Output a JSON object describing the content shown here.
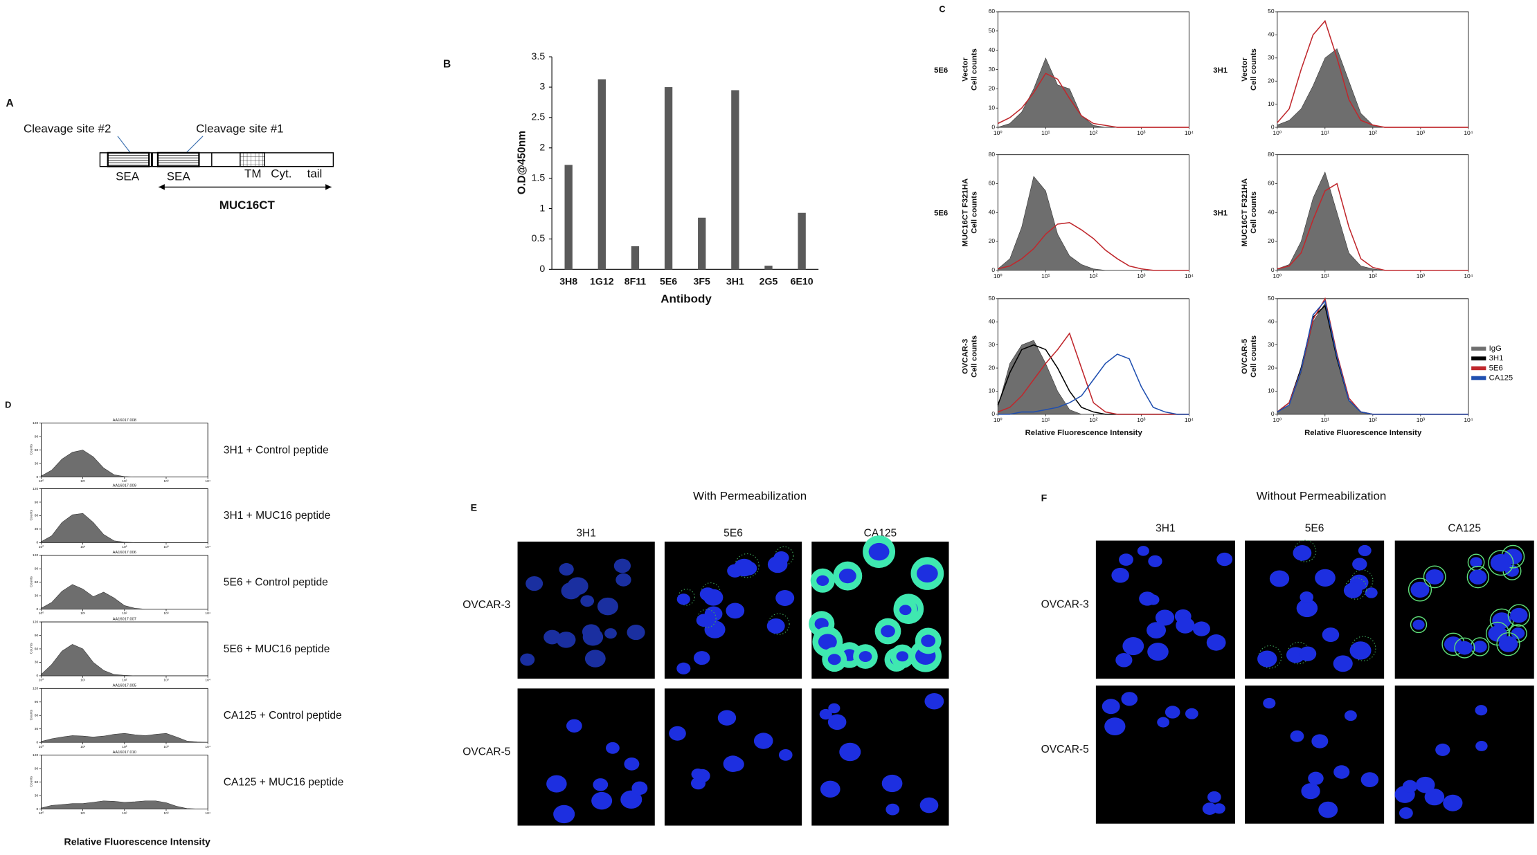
{
  "panel_a": {
    "label": "A",
    "cleavage_site_2": "Cleavage site #2",
    "cleavage_site_1": "Cleavage site #1",
    "domains": [
      "SEA",
      "SEA",
      "TM",
      "Cyt.",
      "tail"
    ],
    "construct": "MUC16CT"
  },
  "chart_data": {
    "type": "bar",
    "label": "B",
    "ylabel": "O.D@450nm",
    "xlabel": "Antibody",
    "categories": [
      "3H8",
      "1G12",
      "8F11",
      "5E6",
      "3F5",
      "3H1",
      "2G5",
      "6E10"
    ],
    "values": [
      1.72,
      3.13,
      0.38,
      3.0,
      0.85,
      2.95,
      0.06,
      0.93
    ],
    "color": "#5a5a5a",
    "ylim": [
      0,
      3.5
    ],
    "yticks": [
      0,
      0.5,
      1,
      1.5,
      2,
      2.5,
      3,
      3.5
    ],
    "grid": false
  },
  "panel_c": {
    "label": "C",
    "ylabel": "Cell counts",
    "xlabel": "Relative Fluorescence Intensity",
    "xscale": "log",
    "x": [
      1,
      1.78,
      3.16,
      5.62,
      10,
      17.8,
      31.6,
      56.2,
      100,
      178,
      316,
      562,
      1000,
      1780,
      3160,
      5620,
      10000
    ],
    "xlim": [
      1,
      10000
    ],
    "xticks": [
      {
        "value": 1,
        "label": "10⁰"
      },
      {
        "value": 10,
        "label": "10¹"
      },
      {
        "value": 100,
        "label": "10²"
      },
      {
        "value": 1000,
        "label": "10³"
      },
      {
        "value": 10000,
        "label": "10⁴"
      }
    ],
    "legend": [
      {
        "name": "IgG",
        "color": "#6e6e6e"
      },
      {
        "name": "3H1",
        "color": "#000000"
      },
      {
        "name": "5E6",
        "color": "#c0282d"
      },
      {
        "name": "CA125",
        "color": "#1f4fb0"
      }
    ],
    "plots": [
      {
        "antibody": "5E6",
        "sample": "Vector",
        "ylim": [
          0,
          60
        ],
        "yticks": [
          0,
          10,
          20,
          30,
          40,
          50,
          60
        ],
        "series": [
          {
            "color": "#6e6e6e",
            "filled": true,
            "values": [
              0,
              2,
              8,
              20,
              36,
              22,
              20,
              6,
              1,
              0,
              0,
              0,
              0,
              0,
              0,
              0,
              0
            ]
          },
          {
            "color": "#c0282d",
            "values": [
              2,
              5,
              10,
              18,
              28,
              25,
              15,
              6,
              2,
              1,
              0,
              0,
              0,
              0,
              0,
              0,
              0
            ]
          }
        ]
      },
      {
        "antibody": "3H1",
        "sample": "Vector",
        "ylim": [
          0,
          50
        ],
        "yticks": [
          0,
          10,
          20,
          30,
          40,
          50
        ],
        "series": [
          {
            "color": "#6e6e6e",
            "filled": true,
            "values": [
              1,
              3,
              8,
              18,
              30,
              34,
              20,
              6,
              1,
              0,
              0,
              0,
              0,
              0,
              0,
              0,
              0
            ]
          },
          {
            "color": "#c0282d",
            "values": [
              2,
              8,
              25,
              40,
              46,
              30,
              12,
              3,
              1,
              0,
              0,
              0,
              0,
              0,
              0,
              0,
              0
            ]
          }
        ]
      },
      {
        "antibody": "5E6",
        "sample": "MUC16CT F321HA",
        "ylim": [
          0,
          80
        ],
        "yticks": [
          0,
          20,
          40,
          60,
          80
        ],
        "series": [
          {
            "color": "#6e6e6e",
            "filled": true,
            "values": [
              1,
              8,
              30,
              65,
              55,
              25,
              10,
              4,
              1,
              0,
              0,
              0,
              0,
              0,
              0,
              0,
              0
            ]
          },
          {
            "color": "#c0282d",
            "values": [
              1,
              3,
              8,
              15,
              25,
              32,
              33,
              28,
              22,
              14,
              8,
              3,
              1,
              0,
              0,
              0,
              0
            ]
          }
        ]
      },
      {
        "antibody": "3H1",
        "sample": "MUC16CT F321HA",
        "ylim": [
          0,
          80
        ],
        "yticks": [
          0,
          20,
          40,
          60,
          80
        ],
        "series": [
          {
            "color": "#6e6e6e",
            "filled": true,
            "values": [
              1,
              4,
              20,
              50,
              68,
              40,
              12,
              3,
              1,
              0,
              0,
              0,
              0,
              0,
              0,
              0,
              0
            ]
          },
          {
            "color": "#c0282d",
            "values": [
              1,
              3,
              12,
              35,
              55,
              60,
              30,
              8,
              2,
              0,
              0,
              0,
              0,
              0,
              0,
              0,
              0
            ]
          }
        ]
      },
      {
        "sample": "OVCAR-3",
        "ylim": [
          0,
          50
        ],
        "yticks": [
          0,
          10,
          20,
          30,
          40,
          50
        ],
        "series": [
          {
            "color": "#6e6e6e",
            "filled": true,
            "values": [
              3,
              22,
              30,
              32,
              22,
              10,
              2,
              0,
              0,
              0,
              0,
              0,
              0,
              0,
              0,
              0,
              0
            ]
          },
          {
            "color": "#000000",
            "values": [
              4,
              18,
              28,
              30,
              28,
              20,
              10,
              3,
              1,
              0,
              0,
              0,
              0,
              0,
              0,
              0,
              0
            ]
          },
          {
            "color": "#c0282d",
            "values": [
              1,
              3,
              8,
              15,
              22,
              28,
              35,
              20,
              5,
              1,
              0,
              0,
              0,
              0,
              0,
              0,
              0
            ]
          },
          {
            "color": "#1f4fb0",
            "values": [
              0,
              0,
              1,
              1,
              2,
              3,
              5,
              8,
              15,
              22,
              26,
              24,
              12,
              3,
              1,
              0,
              0
            ]
          }
        ]
      },
      {
        "sample": "OVCAR-5",
        "ylim": [
          0,
          50
        ],
        "yticks": [
          0,
          10,
          20,
          30,
          40,
          50
        ],
        "series": [
          {
            "color": "#6e6e6e",
            "filled": true,
            "values": [
              1,
              4,
              18,
              40,
              48,
              25,
              6,
              1,
              0,
              0,
              0,
              0,
              0,
              0,
              0,
              0,
              0
            ]
          },
          {
            "color": "#000000",
            "values": [
              1,
              5,
              20,
              42,
              47,
              24,
              6,
              1,
              0,
              0,
              0,
              0,
              0,
              0,
              0,
              0,
              0
            ]
          },
          {
            "color": "#c0282d",
            "values": [
              1,
              5,
              19,
              41,
              50,
              26,
              7,
              1,
              0,
              0,
              0,
              0,
              0,
              0,
              0,
              0,
              0
            ]
          },
          {
            "color": "#1f4fb0",
            "values": [
              1,
              4,
              19,
              43,
              49,
              25,
              6,
              1,
              0,
              0,
              0,
              0,
              0,
              0,
              0,
              0,
              0
            ]
          }
        ]
      }
    ]
  },
  "panel_d": {
    "label": "D",
    "ylabel": "Counts",
    "xlabel": "Relative Fluorescence Intensity",
    "xscale": "log",
    "color": "#6e6e6e",
    "x": [
      1,
      1.78,
      3.16,
      5.62,
      10,
      17.8,
      31.6,
      56.2,
      100,
      178,
      316,
      562,
      1000,
      1780,
      3160,
      5620,
      10000
    ],
    "xlim": [
      1,
      10000
    ],
    "xticks": [
      {
        "value": 1,
        "label": "10⁰"
      },
      {
        "value": 10,
        "label": "10¹"
      },
      {
        "value": 100,
        "label": "10²"
      },
      {
        "value": 1000,
        "label": "10³"
      },
      {
        "value": 10000,
        "label": "10⁴"
      }
    ],
    "plots": [
      {
        "title": "AA16017.008",
        "condition": "3H1 + Control peptide",
        "ylim": [
          0,
          120
        ],
        "yticks": [
          0,
          30,
          60,
          90,
          120
        ],
        "values": [
          2,
          15,
          40,
          55,
          60,
          45,
          20,
          5,
          1,
          0,
          0,
          0,
          0,
          0,
          0,
          0,
          0
        ]
      },
      {
        "title": "AA16017.009",
        "condition": "3H1 + MUC16 peptide",
        "ylim": [
          0,
          120
        ],
        "yticks": [
          0,
          30,
          60,
          90,
          120
        ],
        "values": [
          2,
          15,
          45,
          62,
          65,
          45,
          18,
          4,
          1,
          0,
          0,
          0,
          0,
          0,
          0,
          0,
          0
        ]
      },
      {
        "title": "AA16017.006",
        "condition": "5E6 + Control peptide",
        "ylim": [
          0,
          120
        ],
        "yticks": [
          0,
          30,
          60,
          90,
          120
        ],
        "values": [
          2,
          15,
          40,
          55,
          45,
          28,
          38,
          25,
          8,
          2,
          0,
          0,
          0,
          0,
          0,
          0,
          0
        ]
      },
      {
        "title": "AA16017.007",
        "condition": "5E6 + MUC16 peptide",
        "ylim": [
          0,
          120
        ],
        "yticks": [
          0,
          30,
          60,
          90,
          120
        ],
        "values": [
          3,
          25,
          55,
          70,
          60,
          30,
          12,
          3,
          1,
          0,
          0,
          0,
          0,
          0,
          0,
          0,
          0
        ]
      },
      {
        "title": "AA16017.005",
        "condition": "CA125 + Control peptide",
        "ylim": [
          0,
          120
        ],
        "yticks": [
          0,
          30,
          60,
          90,
          120
        ],
        "values": [
          2,
          8,
          12,
          15,
          14,
          12,
          14,
          18,
          20,
          17,
          15,
          18,
          20,
          12,
          3,
          1,
          0
        ]
      },
      {
        "title": "AA16017.010",
        "condition": "CA125 + MUC16 peptide",
        "ylim": [
          0,
          120
        ],
        "yticks": [
          0,
          30,
          60,
          90,
          120
        ],
        "values": [
          2,
          8,
          10,
          12,
          12,
          15,
          18,
          17,
          15,
          16,
          18,
          18,
          14,
          6,
          1,
          0,
          0
        ]
      }
    ]
  },
  "panel_e": {
    "label": "E",
    "title": "With Permeabilization",
    "columns": [
      "3H1",
      "5E6",
      "CA125"
    ],
    "rows": [
      "OVCAR-3",
      "OVCAR-5"
    ]
  },
  "panel_f": {
    "label": "F",
    "title": "Without Permeabilization",
    "columns": [
      "3H1",
      "5E6",
      "CA125"
    ],
    "rows": [
      "OVCAR-3",
      "OVCAR-5"
    ]
  }
}
